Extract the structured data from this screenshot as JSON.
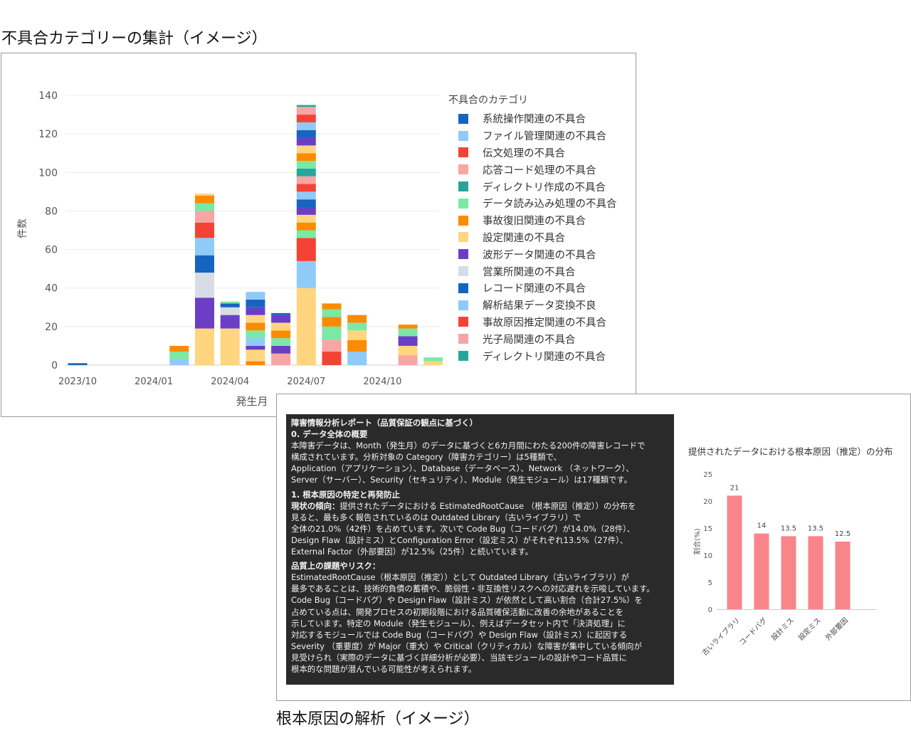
{
  "captions": {
    "top": "不具合カテゴリーの集計（イメージ）",
    "bottom": "根本原因の解析（イメージ）"
  },
  "chart_data": [
    {
      "type": "bar",
      "stacked": true,
      "xlabel": "発生月",
      "ylabel": "件数",
      "ylim": [
        0,
        140
      ],
      "yticks": [
        0,
        20,
        40,
        60,
        80,
        100,
        120,
        140
      ],
      "xtick_labels": [
        "2023/10",
        "2024/01",
        "2024/04",
        "2024/07",
        "2024/10"
      ],
      "categories": [
        "2023/10",
        "2023/11",
        "2023/12",
        "2024/01",
        "2024/02",
        "2024/03",
        "2024/04",
        "2024/05",
        "2024/06",
        "2024/07",
        "2024/08",
        "2024/09",
        "2024/10",
        "2024/11",
        "2024/12",
        "2025/01"
      ],
      "grid": true,
      "legend": {
        "title": "不具合のカテゴリ",
        "placement": "right"
      },
      "series": [
        {
          "name": "系統操作関連の不具合",
          "color": "#1565C0",
          "values": [
            1,
            0,
            0,
            0,
            0,
            0,
            0,
            0,
            0,
            0,
            0,
            0,
            0,
            0,
            0,
            0
          ]
        },
        {
          "name": "ファイル管理関連の不具合",
          "color": "#90CAF9",
          "values": [
            0,
            0,
            0,
            0,
            3,
            0,
            0,
            0,
            0,
            0,
            0,
            7,
            0,
            0,
            0,
            0
          ]
        },
        {
          "name": "伝文処理の不具合",
          "color": "#F44336",
          "values": [
            0,
            0,
            0,
            0,
            0,
            0,
            0,
            0,
            0,
            0,
            7,
            0,
            0,
            0,
            0,
            0
          ]
        },
        {
          "name": "応答コード処理の不具合",
          "color": "#F8A5A5",
          "values": [
            0,
            0,
            0,
            0,
            0,
            0,
            0,
            0,
            6,
            0,
            6,
            0,
            0,
            5,
            0,
            0
          ]
        },
        {
          "name": "ディレクトリ作成の不具合",
          "color": "#26A69A",
          "values": [
            0,
            0,
            0,
            0,
            0,
            0,
            0,
            0,
            0,
            0,
            0,
            0,
            0,
            0,
            0,
            0
          ]
        },
        {
          "name": "データ読み込み処理の不具合",
          "color": "#7BE8A4",
          "values": [
            0,
            0,
            0,
            0,
            0,
            0,
            0,
            0,
            0,
            0,
            7,
            0,
            0,
            0,
            0,
            0
          ]
        },
        {
          "name": "事故復旧関連の不具合",
          "color": "#FB8C00",
          "values": [
            0,
            0,
            0,
            0,
            0,
            0,
            0,
            2,
            0,
            0,
            5,
            6,
            0,
            0,
            0,
            0
          ]
        },
        {
          "name": "設定関連の不具合",
          "color": "#FFD580",
          "values": [
            0,
            0,
            0,
            0,
            0,
            19,
            19,
            6,
            0,
            40,
            0,
            5,
            0,
            5,
            2,
            0
          ]
        },
        {
          "name": "波形データ関連の不具合",
          "color": "#6A3FC6",
          "values": [
            0,
            0,
            0,
            0,
            0,
            16,
            7,
            2,
            4,
            0,
            0,
            0,
            0,
            5,
            0,
            0
          ]
        },
        {
          "name": "営業所関連の不具合",
          "color": "#D7DCE6",
          "values": [
            0,
            0,
            0,
            0,
            0,
            13,
            4,
            0,
            0,
            0,
            0,
            0,
            0,
            0,
            0,
            0
          ]
        },
        {
          "name": "レコード関連の不具合",
          "color": "#1565C0",
          "values": [
            0,
            0,
            0,
            0,
            0,
            9,
            2,
            0,
            0,
            0,
            0,
            0,
            0,
            0,
            0,
            0
          ]
        },
        {
          "name": "解析結果データ変換不良",
          "color": "#90CAF9",
          "values": [
            0,
            0,
            0,
            0,
            0,
            9,
            0,
            4,
            0,
            14,
            0,
            0,
            0,
            0,
            0,
            0
          ]
        },
        {
          "name": "事故原因推定関連の不具合",
          "color": "#F44336",
          "values": [
            0,
            0,
            0,
            0,
            0,
            8,
            0,
            0,
            0,
            12,
            0,
            0,
            0,
            0,
            0,
            0
          ]
        },
        {
          "name": "光子局関連の不具合",
          "color": "#F8A5A5",
          "values": [
            0,
            0,
            0,
            0,
            0,
            6,
            0,
            0,
            0,
            0,
            0,
            0,
            0,
            0,
            0,
            0
          ]
        },
        {
          "name": "ディレクトリ関連の不具合",
          "color": "#26A69A",
          "values": [
            0,
            0,
            0,
            0,
            0,
            0,
            0,
            0,
            0,
            0,
            0,
            0,
            0,
            0,
            0,
            0
          ]
        }
      ],
      "remaining_totals": [
        0,
        0,
        0,
        0,
        7,
        9,
        1,
        24,
        17,
        69,
        7,
        8,
        0,
        6,
        2,
        4
      ]
    },
    {
      "type": "bar",
      "title": "提供されたデータにおける根本原因（推定）の分布",
      "ylabel": "割合(%)",
      "ylim": [
        0,
        25
      ],
      "yticks": [
        0,
        5,
        10,
        15,
        20,
        25
      ],
      "categories": [
        "古いライブラリ",
        "コードバグ",
        "設計ミス",
        "設定ミス",
        "外部要因"
      ],
      "values": [
        21,
        14,
        13.5,
        13.5,
        12.5
      ],
      "data_labels": [
        "21",
        "14",
        "13.5",
        "13.5",
        "12.5"
      ],
      "bar_color": "#F8858A"
    }
  ],
  "report": {
    "title": "障害情報分析レポート（品質保証の観点に基づく）",
    "s0_heading": "0. データ全体の概要",
    "s0_lines": [
      "本障害データは、Month（発生月）のデータに基づくと6カ月間にわたる200件の障害レコードで",
      "構成されています。分析対象の Category（障害カテゴリー）は5種類で、",
      "Application（アプリケーション）、Database（データベース）、Network （ネットワーク）、",
      "Server（サーバー）、Security（セキュリティ）、Module（発生モジュール）は17種類です。"
    ],
    "s1_heading": "1. 根本原因の特定と再発防止",
    "trend_label": "現状の傾向：",
    "trend_first": "提供されたデータにおける EstimatedRootCause （根本原因（推定））の分布を",
    "trend_lines": [
      "見ると、最も多く報告されているのは Outdated Library（古いライブラリ）で",
      "全体の21.0%（42件）を占めています。次いで Code Bug（コードバグ）が14.0%（28件）、",
      "Design Flaw（設計ミス）とConfiguration Error（設定ミス）がそれぞれ13.5%（27件）、",
      "External Factor（外部要因）が12.5%（25件）と続いています。"
    ],
    "issues_heading": "品質上の課題やリスク：",
    "issues_lines": [
      "EstimatedRootCause（根本原因（推定））として Outdated Library（古いライブラリ）が",
      "最多であることは、技術的負債の蓄積や、脆弱性・非互換性リスクへの対応遅れを示唆しています。",
      "Code Bug（コードバグ）や Design Flaw（設計ミス）が依然として高い割合（合計27.5%）を",
      "占めている点は、開発プロセスの初期段階における品質確保活動に改善の余地があることを",
      "示しています。特定の Module（発生モジュール）、例えばデータセット内で「決済処理」に",
      "対応するモジュールでは Code Bug（コードバグ）や Design Flaw（設計ミス）に起因する",
      "Severity （重要度）が Major（重大）や Critical（クリティカル）な障害が集中している傾向が",
      "見受けられ（実際のデータに基づく詳細分析が必要）、当該モジュールの設計やコード品質に",
      "根本的な問題が潜んでいる可能性が考えられます。"
    ]
  }
}
